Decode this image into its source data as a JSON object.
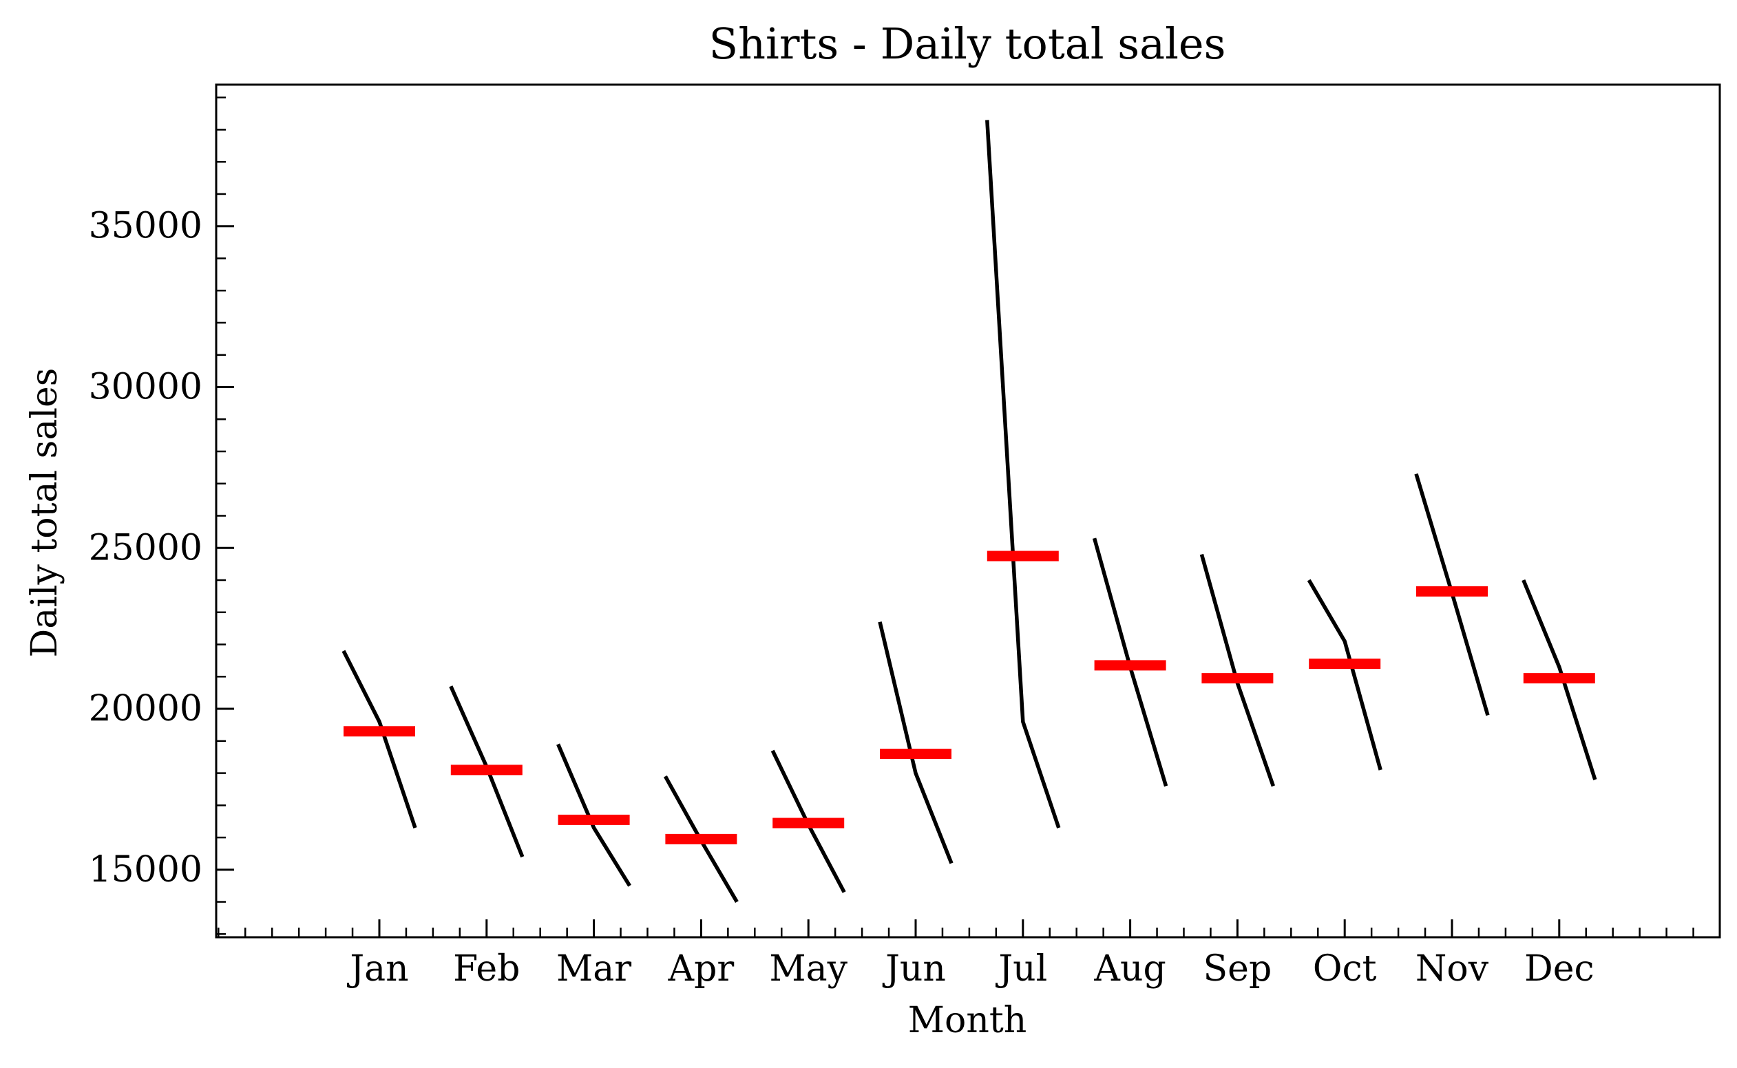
{
  "chart_data": {
    "type": "line",
    "title": "Shirts - Daily total sales",
    "xlabel": "Month",
    "ylabel": "Daily total sales",
    "ylim": [
      12900,
      39400
    ],
    "yticks": [
      15000,
      20000,
      25000,
      30000,
      35000
    ],
    "ytick_labels": [
      "15000",
      "20000",
      "25000",
      "30000",
      "35000"
    ],
    "categories": [
      "Jan",
      "Feb",
      "Mar",
      "Apr",
      "May",
      "Jun",
      "Jul",
      "Aug",
      "Sep",
      "Oct",
      "Nov",
      "Dec"
    ],
    "series": [
      {
        "values": [
          [
            21800,
            19600,
            16300
          ],
          [
            20700,
            18200,
            15400
          ],
          [
            18900,
            16300,
            14500
          ],
          [
            17900,
            15900,
            14000
          ],
          [
            18700,
            16400,
            14300
          ],
          [
            22700,
            18000,
            15200
          ],
          [
            38300,
            19600,
            16300
          ],
          [
            25300,
            21300,
            17600
          ],
          [
            24800,
            20800,
            17600
          ],
          [
            24000,
            22100,
            18100
          ],
          [
            27300,
            23600,
            19800
          ],
          [
            24000,
            21300,
            17800
          ]
        ]
      },
      {
        "values": [
          19300,
          18100,
          16550,
          15950,
          16450,
          18600,
          24750,
          21350,
          20950,
          21400,
          23650,
          20950
        ]
      }
    ],
    "grid": false,
    "legend": "none",
    "colors": {
      "line": "#000000",
      "mean": "#ff0000"
    }
  }
}
